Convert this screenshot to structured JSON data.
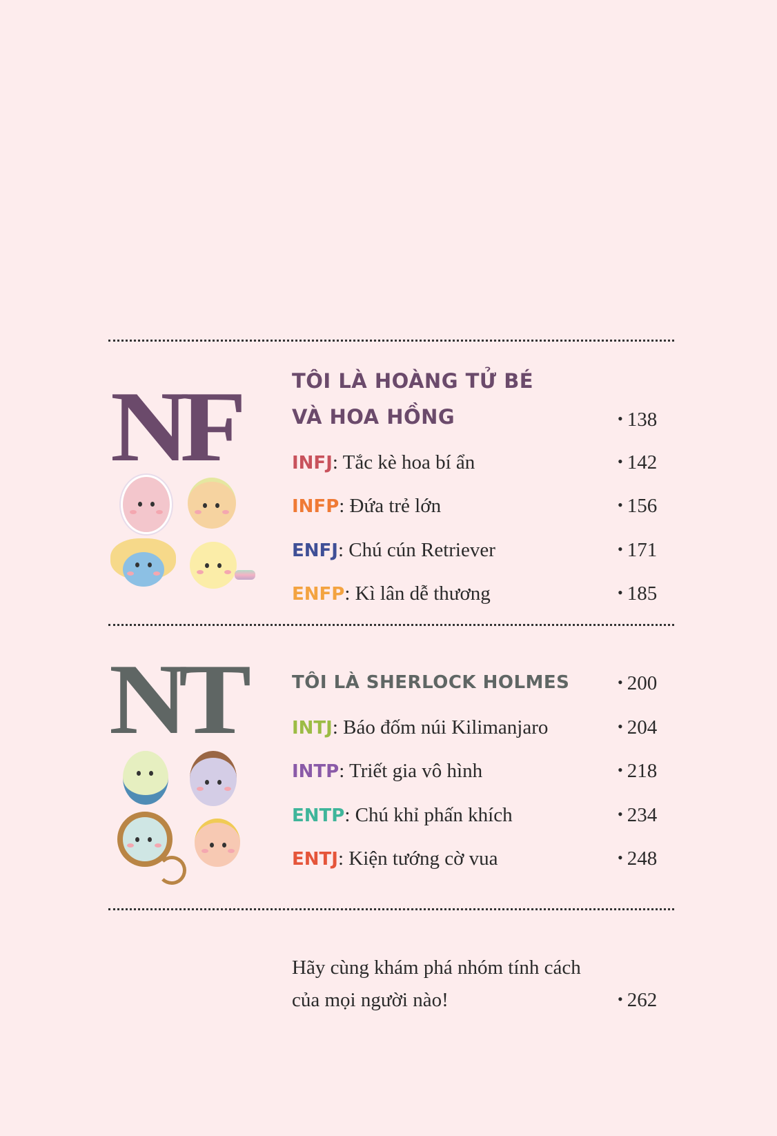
{
  "sections": [
    {
      "letters": "NF",
      "color": "#6b4a6b",
      "heading": [
        "TÔI LÀ HOÀNG TỬ BÉ",
        "VÀ HOA HỒNG"
      ],
      "page": "138",
      "items": [
        {
          "code": "INFJ",
          "code_color": "#c8525c",
          "title": ": Tắc kè hoa bí ẩn",
          "page": "142"
        },
        {
          "code": "INFP",
          "code_color": "#ef7a35",
          "title": ": Đứa trẻ lớn",
          "page": "156"
        },
        {
          "code": "ENFJ",
          "code_color": "#3f4f96",
          "title": ": Chú cún Retriever",
          "page": "171"
        },
        {
          "code": "ENFP",
          "code_color": "#f3a340",
          "title": ": Kì lân dễ thương",
          "page": "185"
        }
      ]
    },
    {
      "letters": "NT",
      "color": "#5f6664",
      "heading": [
        "TÔI LÀ SHERLOCK HOLMES"
      ],
      "page": "200",
      "items": [
        {
          "code": "INTJ",
          "code_color": "#9cbc45",
          "title": ": Báo đốm núi Kilimanjaro",
          "page": "204"
        },
        {
          "code": "INTP",
          "code_color": "#8a5aa8",
          "title": ": Triết gia vô hình",
          "page": "218"
        },
        {
          "code": "ENTP",
          "code_color": "#3fb59a",
          "title": ": Chú khỉ phấn khích",
          "page": "234"
        },
        {
          "code": "ENTJ",
          "code_color": "#e5553a",
          "title": ": Kiện tướng cờ vua",
          "page": "248"
        }
      ]
    }
  ],
  "footer": {
    "line1": "Hãy cùng khám phá nhóm tính cách",
    "line2": "của mọi người nào!",
    "page": "262"
  }
}
